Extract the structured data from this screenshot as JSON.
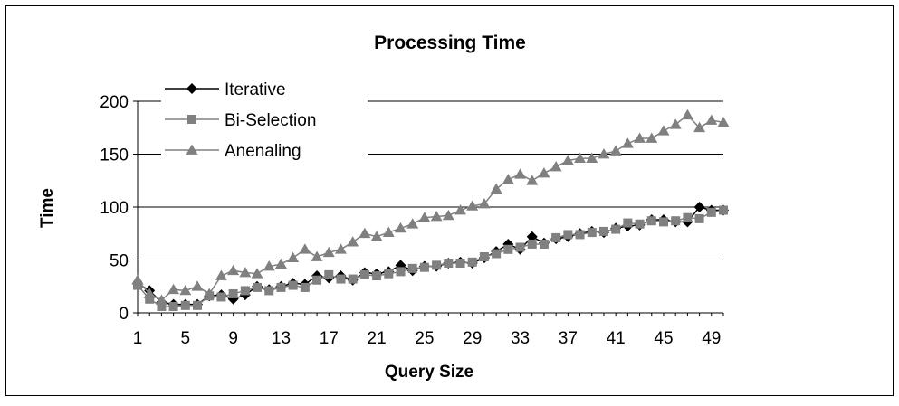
{
  "chart_data": {
    "type": "line",
    "title": "Processing Time",
    "xlabel": "Query Size",
    "ylabel": "Time",
    "xlim": [
      1,
      50
    ],
    "ylim": [
      0,
      200
    ],
    "x_ticks": [
      1,
      5,
      9,
      13,
      17,
      21,
      25,
      29,
      33,
      37,
      41,
      45,
      49
    ],
    "y_ticks": [
      0,
      50,
      100,
      150,
      200
    ],
    "grid": "horizontal",
    "legend": "top-left",
    "x": [
      1,
      2,
      3,
      4,
      5,
      6,
      7,
      8,
      9,
      10,
      11,
      12,
      13,
      14,
      15,
      16,
      17,
      18,
      19,
      20,
      21,
      22,
      23,
      24,
      25,
      26,
      27,
      28,
      29,
      30,
      31,
      32,
      33,
      34,
      35,
      36,
      37,
      38,
      39,
      40,
      41,
      42,
      43,
      44,
      45,
      46,
      47,
      48,
      49,
      50
    ],
    "series": [
      {
        "name": "Iterative",
        "marker": "diamond",
        "color": "#000000",
        "values": [
          28,
          21,
          10,
          8,
          8,
          8,
          16,
          17,
          13,
          17,
          25,
          22,
          25,
          28,
          27,
          35,
          33,
          35,
          31,
          38,
          37,
          39,
          45,
          40,
          44,
          44,
          47,
          48,
          47,
          52,
          58,
          65,
          60,
          72,
          66,
          70,
          72,
          75,
          77,
          76,
          80,
          82,
          83,
          88,
          88,
          86,
          86,
          100,
          97,
          97
        ]
      },
      {
        "name": "Bi-Selection",
        "marker": "square",
        "color": "#808080",
        "values": [
          26,
          13,
          6,
          6,
          7,
          7,
          16,
          15,
          18,
          21,
          24,
          21,
          24,
          26,
          24,
          31,
          36,
          32,
          32,
          36,
          35,
          37,
          39,
          42,
          43,
          45,
          47,
          47,
          48,
          53,
          56,
          60,
          62,
          65,
          65,
          71,
          74,
          74,
          76,
          77,
          79,
          85,
          84,
          87,
          86,
          87,
          90,
          89,
          95,
          97
        ]
      },
      {
        "name": "Anenaling",
        "marker": "triangle",
        "color": "#808080",
        "values": [
          31,
          18,
          12,
          22,
          21,
          25,
          18,
          35,
          40,
          38,
          37,
          44,
          46,
          52,
          60,
          53,
          57,
          60,
          67,
          75,
          72,
          76,
          80,
          84,
          90,
          91,
          92,
          97,
          101,
          103,
          117,
          126,
          131,
          125,
          132,
          138,
          144,
          146,
          146,
          150,
          153,
          160,
          165,
          165,
          172,
          178,
          187,
          175,
          182,
          180
        ]
      }
    ]
  }
}
